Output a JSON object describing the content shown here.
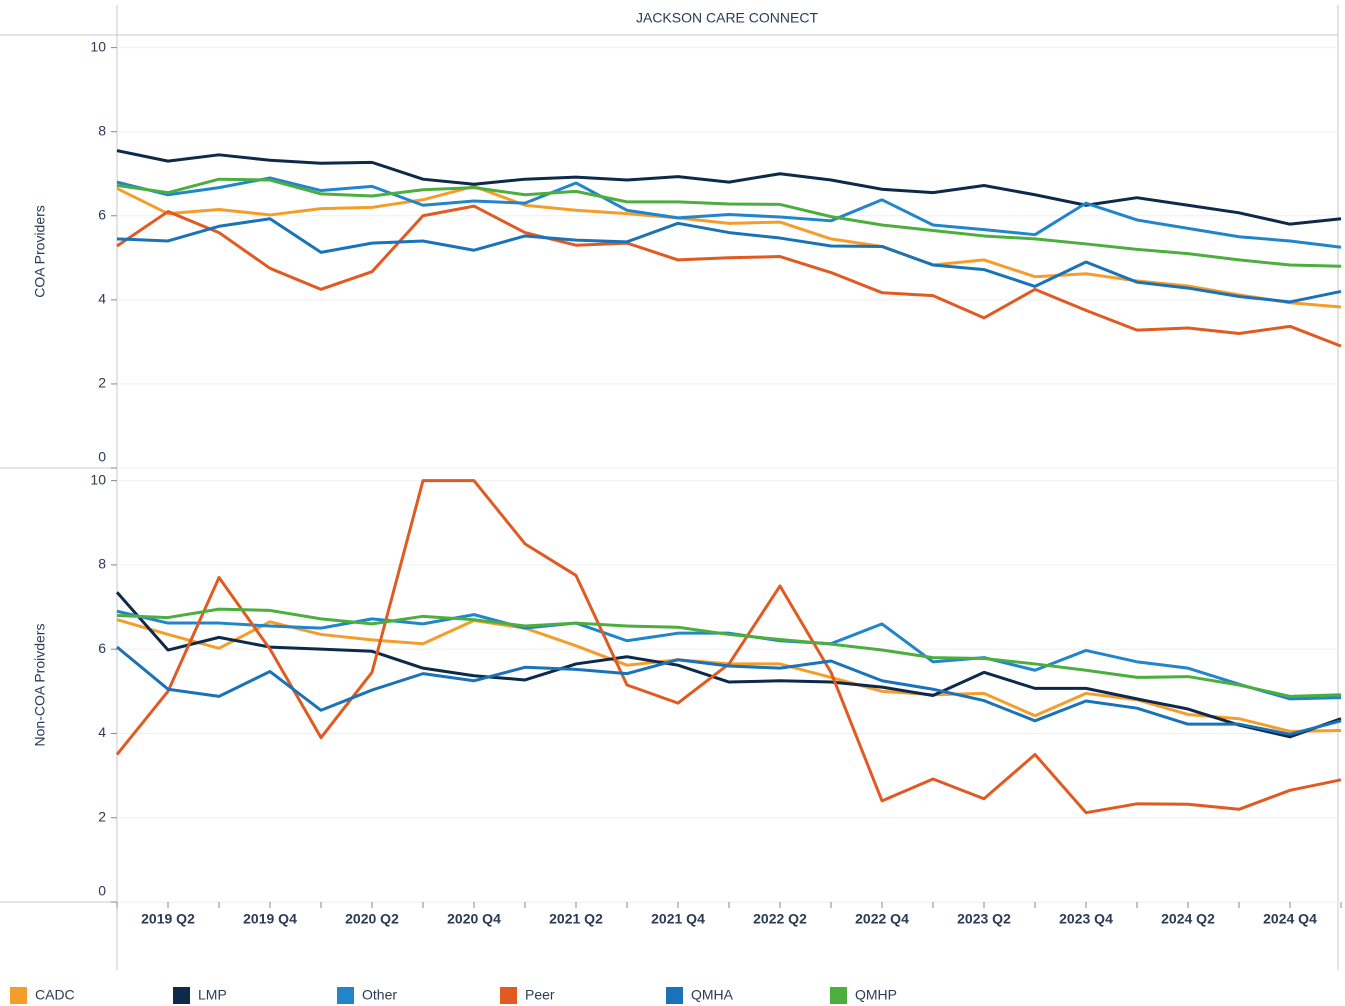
{
  "chart_data": [
    {
      "type": "line",
      "title": "JACKSON CARE CONNECT",
      "y_label": "COA Providers",
      "ylim": [
        0,
        10.3
      ],
      "yticks": [
        0,
        2,
        4,
        6,
        8,
        10
      ],
      "grid": true,
      "series": [
        {
          "name": "CADC",
          "color": "#f59d2a",
          "values": [
            6.65,
            6.05,
            6.15,
            6.02,
            6.17,
            6.2,
            6.38,
            6.7,
            6.25,
            6.13,
            6.05,
            5.95,
            5.82,
            5.85,
            5.45,
            5.27,
            4.83,
            4.95,
            4.55,
            4.62,
            4.45,
            4.33,
            4.12,
            3.93,
            3.83
          ]
        },
        {
          "name": "LMP",
          "color": "#0d2a4b",
          "values": [
            7.55,
            7.3,
            7.45,
            7.32,
            7.25,
            7.27,
            6.87,
            6.75,
            6.87,
            6.92,
            6.85,
            6.93,
            6.8,
            7.0,
            6.85,
            6.63,
            6.55,
            6.72,
            6.5,
            6.25,
            6.43,
            6.25,
            6.07,
            5.8,
            5.93
          ]
        },
        {
          "name": "Other",
          "color": "#2185cc",
          "values": [
            6.8,
            6.5,
            6.67,
            6.9,
            6.6,
            6.7,
            6.25,
            6.35,
            6.3,
            6.78,
            6.13,
            5.95,
            6.03,
            5.97,
            5.88,
            6.38,
            5.78,
            5.67,
            5.55,
            6.3,
            5.9,
            5.7,
            5.5,
            5.4,
            5.25
          ]
        },
        {
          "name": "Peer",
          "color": "#e05a22",
          "values": [
            5.28,
            6.1,
            5.6,
            4.75,
            4.25,
            4.67,
            6.0,
            6.23,
            5.6,
            5.3,
            5.35,
            4.95,
            5.0,
            5.03,
            4.65,
            4.17,
            4.1,
            3.57,
            4.25,
            3.75,
            3.28,
            3.33,
            3.2,
            3.37,
            2.9
          ]
        },
        {
          "name": "QMHA",
          "color": "#1a72b8",
          "values": [
            5.45,
            5.4,
            5.75,
            5.93,
            5.13,
            5.35,
            5.4,
            5.18,
            5.52,
            5.42,
            5.38,
            5.82,
            5.6,
            5.47,
            5.28,
            5.27,
            4.83,
            4.72,
            4.32,
            4.9,
            4.42,
            4.28,
            4.08,
            3.95,
            4.2
          ]
        },
        {
          "name": "QMHP",
          "color": "#4cae3e",
          "values": [
            6.72,
            6.55,
            6.87,
            6.85,
            6.52,
            6.47,
            6.62,
            6.67,
            6.5,
            6.58,
            6.33,
            6.33,
            6.28,
            6.27,
            5.98,
            5.78,
            5.65,
            5.52,
            5.45,
            5.33,
            5.2,
            5.1,
            4.95,
            4.83,
            4.8
          ]
        }
      ]
    },
    {
      "type": "line",
      "y_label": "Non-COA Proivders",
      "categories": [
        null,
        "2019 Q2",
        null,
        "2019 Q4",
        null,
        "2020 Q2",
        null,
        "2020 Q4",
        null,
        "2021 Q2",
        null,
        "2021 Q4",
        null,
        "2022 Q2",
        null,
        "2022 Q4",
        null,
        "2023 Q2",
        null,
        "2023 Q4",
        null,
        "2024 Q2",
        null,
        "2024 Q4",
        null
      ],
      "ylim": [
        0,
        10.3
      ],
      "yticks": [
        0,
        2,
        4,
        6,
        8,
        10
      ],
      "grid": true,
      "series": [
        {
          "color": "#f59d2a",
          "values": [
            6.7,
            6.35,
            6.02,
            6.65,
            6.35,
            6.22,
            6.13,
            6.68,
            6.5,
            6.08,
            5.62,
            5.75,
            5.65,
            5.65,
            5.33,
            5.0,
            4.92,
            4.95,
            4.42,
            4.95,
            4.8,
            4.45,
            4.35,
            4.05,
            4.07
          ]
        },
        {
          "color": "#0d2a4b",
          "values": [
            7.35,
            5.98,
            6.28,
            6.05,
            6.0,
            5.95,
            5.55,
            5.37,
            5.27,
            5.65,
            5.82,
            5.62,
            5.22,
            5.25,
            5.22,
            5.1,
            4.9,
            5.45,
            5.07,
            5.07,
            4.82,
            4.58,
            4.2,
            3.92,
            4.35
          ]
        },
        {
          "color": "#2185cc",
          "values": [
            6.9,
            6.62,
            6.62,
            6.55,
            6.5,
            6.72,
            6.6,
            6.82,
            6.5,
            6.62,
            6.2,
            6.38,
            6.38,
            6.2,
            6.13,
            6.6,
            5.7,
            5.8,
            5.5,
            5.97,
            5.7,
            5.55,
            5.17,
            4.82,
            4.85
          ]
        },
        {
          "color": "#e05a22",
          "values": [
            3.5,
            5.0,
            7.7,
            6.0,
            3.9,
            5.45,
            10.0,
            10.0,
            8.5,
            7.75,
            5.15,
            4.72,
            5.65,
            7.5,
            5.45,
            2.4,
            2.92,
            2.45,
            3.5,
            2.12,
            2.33,
            2.32,
            2.2,
            2.65,
            2.9
          ]
        },
        {
          "color": "#1a72b8",
          "values": [
            6.05,
            5.05,
            4.88,
            5.47,
            4.55,
            5.03,
            5.42,
            5.25,
            5.57,
            5.52,
            5.42,
            5.75,
            5.6,
            5.55,
            5.72,
            5.25,
            5.05,
            4.78,
            4.3,
            4.77,
            4.6,
            4.22,
            4.22,
            3.98,
            4.3
          ]
        },
        {
          "color": "#4cae3e",
          "values": [
            6.8,
            6.75,
            6.95,
            6.92,
            6.72,
            6.6,
            6.78,
            6.7,
            6.55,
            6.62,
            6.55,
            6.52,
            6.35,
            6.23,
            6.12,
            5.98,
            5.8,
            5.78,
            5.65,
            5.5,
            5.33,
            5.35,
            5.15,
            4.88,
            4.92
          ]
        }
      ]
    }
  ]
}
